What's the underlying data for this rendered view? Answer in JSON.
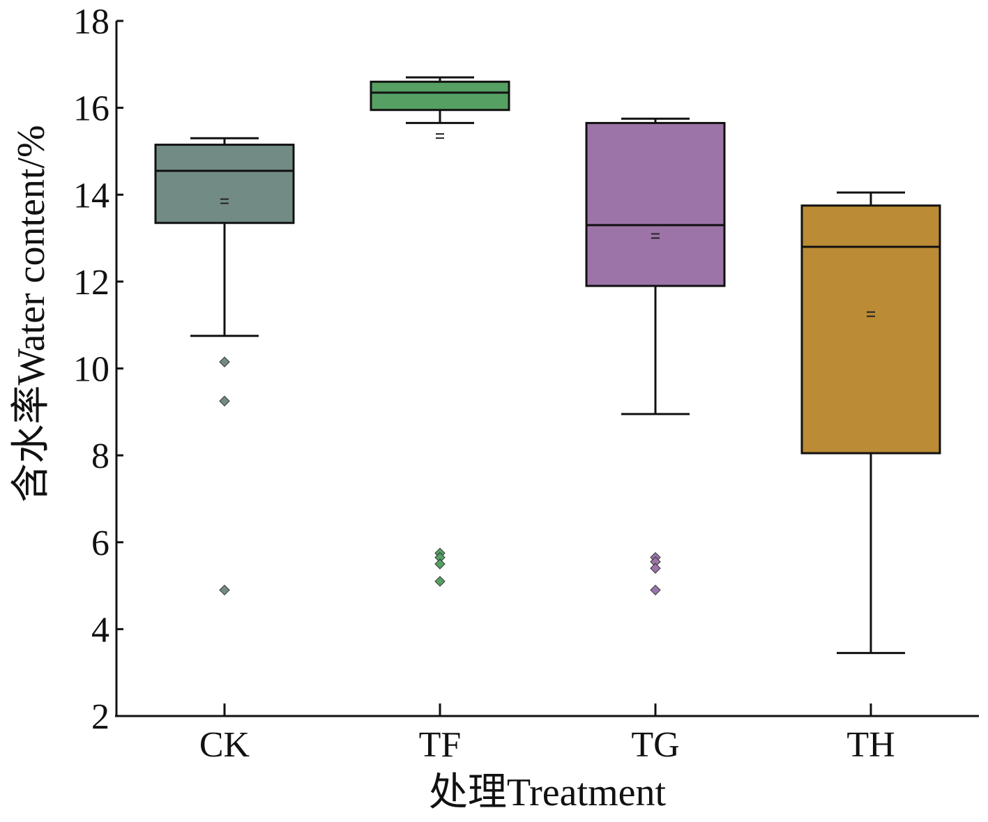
{
  "chart_data": {
    "type": "box",
    "title": "",
    "xlabel": "处理Treatment",
    "ylabel": "含水率Water content/%",
    "ylim": [
      2,
      18
    ],
    "yticks": [
      2,
      4,
      6,
      8,
      10,
      12,
      14,
      16,
      18
    ],
    "categories": [
      "CK",
      "TF",
      "TG",
      "TH"
    ],
    "grid": false,
    "boxes": [
      {
        "name": "CK",
        "color": "#728c85",
        "whisker_low": 10.75,
        "q1": 13.35,
        "median": 14.55,
        "q3": 15.15,
        "whisker_high": 15.3,
        "mean": 13.85,
        "outliers": [
          10.15,
          9.25,
          4.9
        ]
      },
      {
        "name": "TF",
        "color": "#56a064",
        "whisker_low": 15.65,
        "q1": 15.95,
        "median": 16.35,
        "q3": 16.6,
        "whisker_high": 16.7,
        "mean": 15.35,
        "outliers": [
          5.75,
          5.65,
          5.5,
          5.1
        ]
      },
      {
        "name": "TG",
        "color": "#9c74a8",
        "whisker_low": 8.95,
        "q1": 11.9,
        "median": 13.3,
        "q3": 15.65,
        "whisker_high": 15.75,
        "mean": 13.05,
        "outliers": [
          5.65,
          5.55,
          5.4,
          4.9
        ]
      },
      {
        "name": "TH",
        "color": "#bb8b35",
        "whisker_low": 3.45,
        "q1": 8.05,
        "median": 12.8,
        "q3": 13.75,
        "whisker_high": 14.05,
        "mean": 11.25,
        "outliers": []
      }
    ]
  }
}
